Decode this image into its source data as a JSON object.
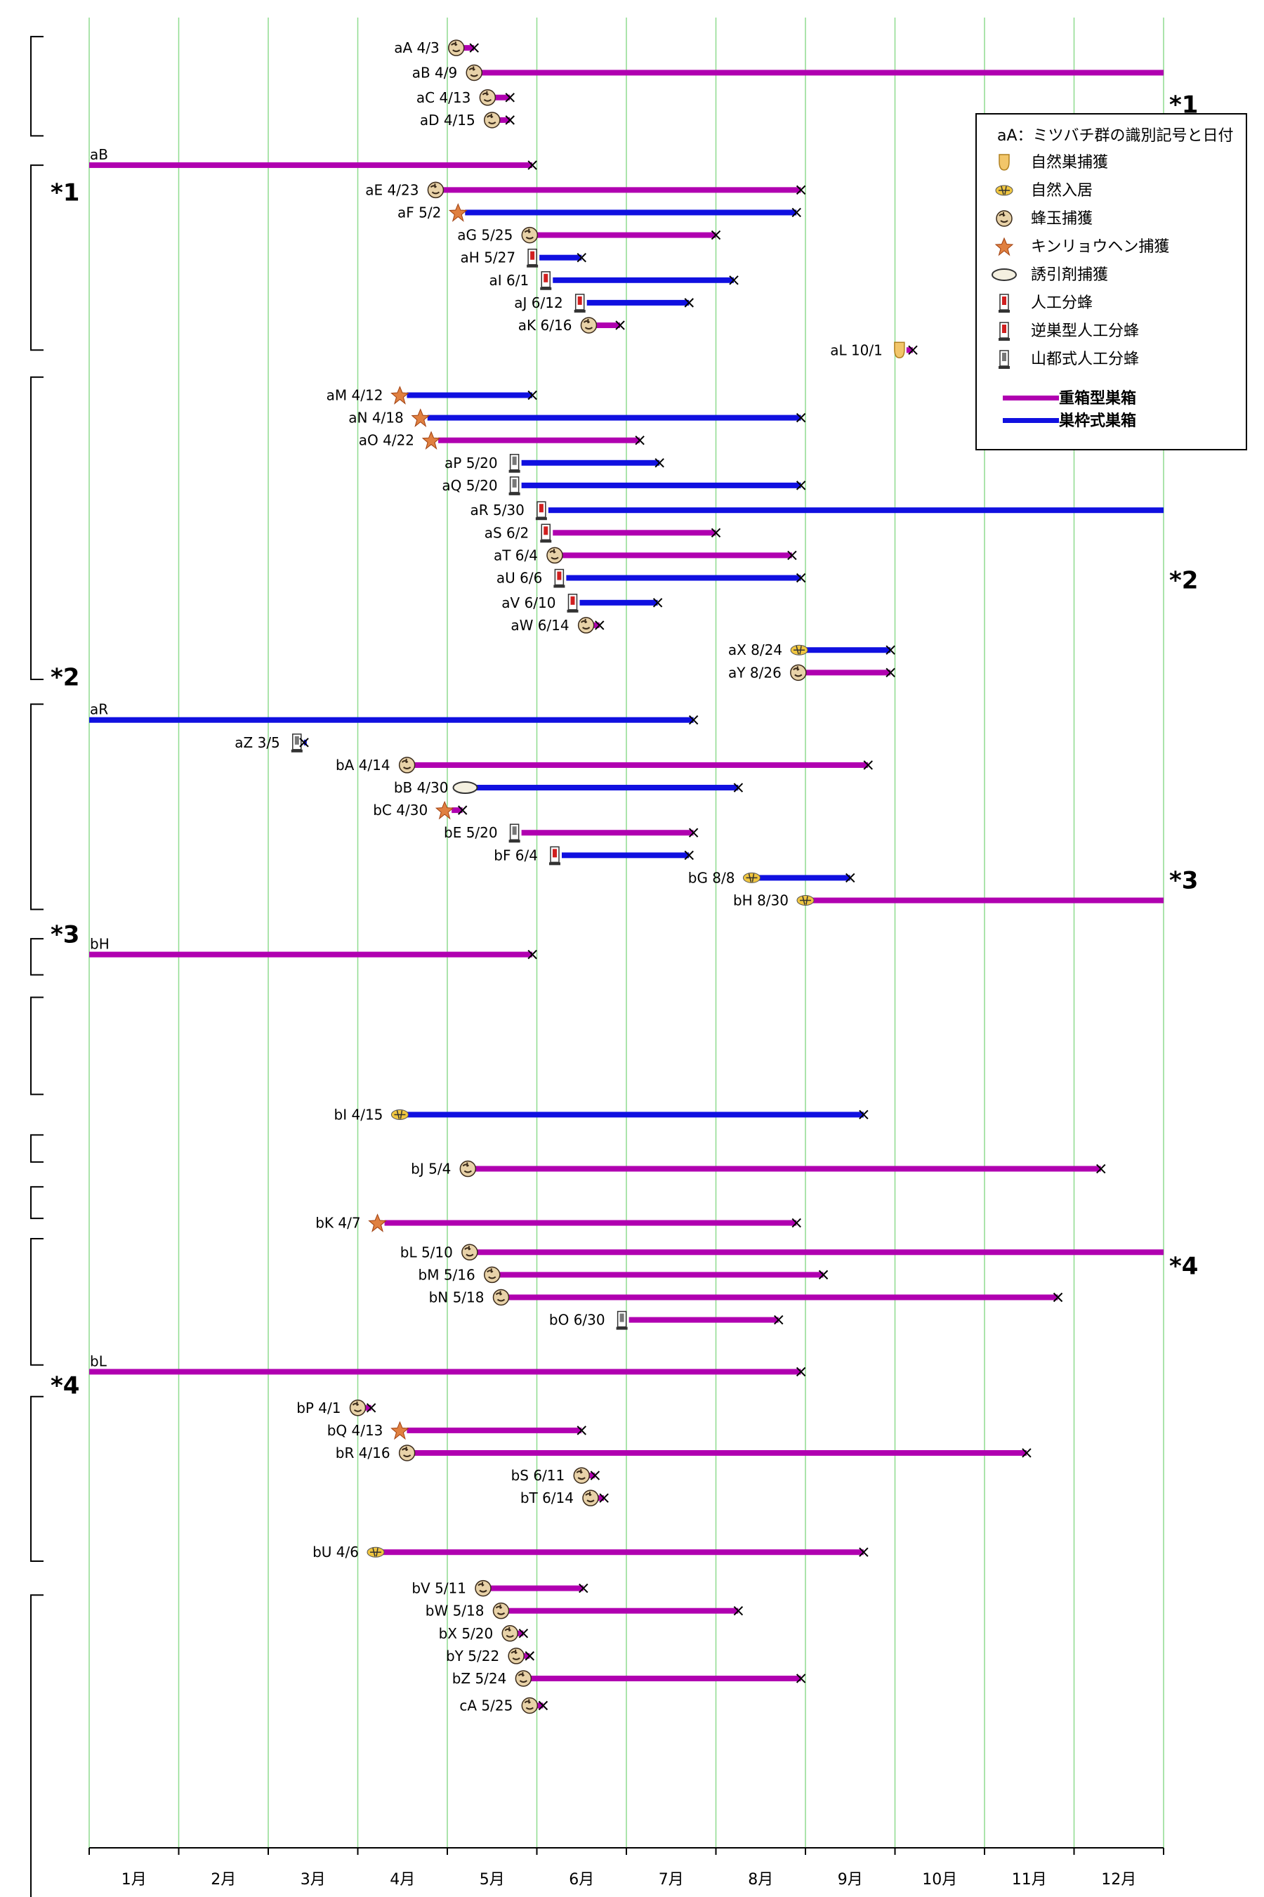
{
  "chart_data": {
    "type": "gantt",
    "colors": {
      "jubako": "#b000b0",
      "sukuwaku": "#1010e0",
      "grid": "#8fdc8f"
    },
    "months": [
      "1月",
      "2月",
      "3月",
      "4月",
      "5月",
      "6月",
      "7月",
      "8月",
      "9月",
      "10月",
      "11月",
      "12月"
    ],
    "legend": {
      "header": "aA：ミツバチ群の識別記号と日付",
      "items": [
        {
          "icon": "natural-nest-icon",
          "label": "自然巣捕獲"
        },
        {
          "icon": "swarm-settle-icon",
          "label": "自然入居"
        },
        {
          "icon": "swarm-ball-icon",
          "label": "蜂玉捕獲"
        },
        {
          "icon": "orchid-icon",
          "label": "キンリョウヘン捕獲"
        },
        {
          "icon": "lure-icon",
          "label": "誘引剤捕獲"
        },
        {
          "icon": "split-icon",
          "label": "人工分蜂"
        },
        {
          "icon": "split-reverse-icon",
          "label": "逆巣型人工分蜂"
        },
        {
          "icon": "split-yamato-icon",
          "label": "山都式人工分蜂"
        }
      ],
      "lines": [
        {
          "type": "jubako",
          "label": "重箱型巣箱"
        },
        {
          "type": "sukuwaku",
          "label": "巣枠式巣箱"
        }
      ]
    },
    "notes": [
      {
        "label": "*1",
        "y": 4.0
      },
      {
        "label": "*1",
        "y": 7.9
      },
      {
        "label": "*2",
        "y": 25.1
      },
      {
        "label": "*2",
        "y": 29.4
      },
      {
        "label": "*3",
        "y": 38.4
      },
      {
        "label": "*3",
        "y": 40.8
      },
      {
        "label": "*4",
        "y": 55.5
      },
      {
        "label": "*4",
        "y": 60.8
      }
    ],
    "brackets": [
      [
        1,
        5.4
      ],
      [
        6.7,
        14.9
      ],
      [
        16.1,
        29.5
      ],
      [
        30.6,
        39.7
      ],
      [
        41,
        42.6
      ],
      [
        43.6,
        47.9
      ],
      [
        49.7,
        50.9
      ],
      [
        52,
        53.4
      ],
      [
        54.3,
        59.9
      ],
      [
        61.3,
        68.6
      ],
      [
        70.1,
        83.9
      ]
    ],
    "rows": [
      {
        "label": "aA 4/3",
        "row": 1.5,
        "start": 4.1,
        "end": 4.3,
        "icon": "swarm-ball-icon",
        "type": "jubako",
        "x": true
      },
      {
        "label": "aB 4/9",
        "row": 2.6,
        "start": 4.3,
        "end": 12,
        "icon": "swarm-ball-icon",
        "type": "jubako",
        "x": false
      },
      {
        "label": "aC 4/13",
        "row": 3.7,
        "start": 4.45,
        "end": 4.7,
        "icon": "swarm-ball-icon",
        "type": "jubako",
        "x": true
      },
      {
        "label": "aD 4/15",
        "row": 4.7,
        "start": 4.5,
        "end": 4.7,
        "icon": "swarm-ball-icon",
        "type": "jubako",
        "x": true
      },
      {
        "label": "aB",
        "row": 6.7,
        "start": 0,
        "end": 4.95,
        "icon": "",
        "type": "jubako",
        "x": true
      },
      {
        "label": "aE 4/23",
        "row": 7.8,
        "start": 3.87,
        "end": 7.95,
        "icon": "swarm-ball-icon",
        "type": "jubako",
        "x": true
      },
      {
        "label": "aF 5/2",
        "row": 8.8,
        "start": 4.12,
        "end": 7.9,
        "icon": "orchid-icon",
        "type": "sukuwaku",
        "x": true
      },
      {
        "label": "aG 5/25",
        "row": 9.8,
        "start": 4.92,
        "end": 7.0,
        "icon": "swarm-ball-icon",
        "type": "jubako",
        "x": true
      },
      {
        "label": "aH 5/27",
        "row": 10.8,
        "start": 4.95,
        "end": 5.5,
        "icon": "split-icon",
        "type": "sukuwaku",
        "x": true
      },
      {
        "label": "aI 6/1",
        "row": 11.8,
        "start": 5.1,
        "end": 7.2,
        "icon": "split-icon",
        "type": "sukuwaku",
        "x": true
      },
      {
        "label": "aJ 6/12",
        "row": 12.8,
        "start": 5.48,
        "end": 6.7,
        "icon": "split-reverse-icon",
        "type": "sukuwaku",
        "x": true
      },
      {
        "label": "aK 6/16",
        "row": 13.8,
        "start": 5.58,
        "end": 5.93,
        "icon": "swarm-ball-icon",
        "type": "jubako",
        "x": true
      },
      {
        "label": "aL 10/1",
        "row": 14.9,
        "start": 9.05,
        "end": 9.2,
        "icon": "natural-nest-icon",
        "type": "jubako",
        "x": true
      },
      {
        "label": "aM 4/12",
        "row": 16.9,
        "start": 3.47,
        "end": 4.95,
        "icon": "orchid-icon",
        "type": "sukuwaku",
        "x": true
      },
      {
        "label": "aN 4/18",
        "row": 17.9,
        "start": 3.7,
        "end": 7.95,
        "icon": "orchid-icon",
        "type": "sukuwaku",
        "x": true
      },
      {
        "label": "aO 4/22",
        "row": 18.9,
        "start": 3.82,
        "end": 6.15,
        "icon": "orchid-icon",
        "type": "jubako",
        "x": true
      },
      {
        "label": "aP 5/20",
        "row": 19.9,
        "start": 4.75,
        "end": 6.37,
        "icon": "split-yamato-icon",
        "type": "sukuwaku",
        "x": true
      },
      {
        "label": "aQ 5/20",
        "row": 20.9,
        "start": 4.75,
        "end": 7.95,
        "icon": "split-yamato-icon",
        "type": "sukuwaku",
        "x": true
      },
      {
        "label": "aR 5/30",
        "row": 22.0,
        "start": 5.05,
        "end": 12,
        "icon": "split-icon",
        "type": "sukuwaku",
        "x": false
      },
      {
        "label": "aS 6/2",
        "row": 23.0,
        "start": 5.1,
        "end": 7.0,
        "icon": "split-icon",
        "type": "jubako",
        "x": true
      },
      {
        "label": "aT 6/4",
        "row": 24.0,
        "start": 5.2,
        "end": 7.85,
        "icon": "swarm-ball-icon",
        "type": "jubako",
        "x": true
      },
      {
        "label": "aU 6/6",
        "row": 25.0,
        "start": 5.25,
        "end": 7.95,
        "icon": "split-icon",
        "type": "sukuwaku",
        "x": true
      },
      {
        "label": "aV 6/10",
        "row": 26.1,
        "start": 5.4,
        "end": 6.35,
        "icon": "split-reverse-icon",
        "type": "sukuwaku",
        "x": true
      },
      {
        "label": "aW 6/14",
        "row": 27.1,
        "start": 5.55,
        "end": 5.7,
        "icon": "swarm-ball-icon",
        "type": "jubako",
        "x": true
      },
      {
        "label": "aX 8/24",
        "row": 28.2,
        "start": 7.93,
        "end": 8.95,
        "icon": "swarm-settle-icon",
        "type": "sukuwaku",
        "x": true
      },
      {
        "label": "aY 8/26",
        "row": 29.2,
        "start": 7.92,
        "end": 8.95,
        "icon": "swarm-ball-icon",
        "type": "jubako",
        "x": true
      },
      {
        "label": "aR",
        "row": 31.3,
        "start": 0,
        "end": 6.75,
        "icon": "",
        "type": "sukuwaku",
        "x": true
      },
      {
        "label": "aZ 3/5",
        "row": 32.3,
        "start": 2.32,
        "end": 2.4,
        "icon": "split-yamato-icon",
        "type": "sukuwaku",
        "x": true
      },
      {
        "label": "bA 4/14",
        "row": 33.3,
        "start": 3.55,
        "end": 8.7,
        "icon": "swarm-ball-icon",
        "type": "jubako",
        "x": true
      },
      {
        "label": "bB 4/30",
        "row": 34.3,
        "start": 4.2,
        "end": 7.25,
        "icon": "lure-icon",
        "type": "sukuwaku",
        "x": true
      },
      {
        "label": "bC 4/30",
        "row": 35.3,
        "start": 3.97,
        "end": 4.17,
        "icon": "orchid-icon",
        "type": "jubako",
        "x": true
      },
      {
        "label": "bE 5/20",
        "row": 36.3,
        "start": 4.75,
        "end": 6.75,
        "icon": "split-yamato-icon",
        "type": "jubako",
        "x": true
      },
      {
        "label": "bF 6/4",
        "row": 37.3,
        "start": 5.2,
        "end": 6.7,
        "icon": "split-icon",
        "type": "sukuwaku",
        "x": true
      },
      {
        "label": "bG 8/8",
        "row": 38.3,
        "start": 7.4,
        "end": 8.5,
        "icon": "swarm-settle-icon",
        "type": "sukuwaku",
        "x": true
      },
      {
        "label": "bH 8/30",
        "row": 39.3,
        "start": 8.0,
        "end": 12,
        "icon": "swarm-settle-icon",
        "type": "jubako",
        "x": false
      },
      {
        "label": "bH",
        "row": 41.7,
        "start": 0,
        "end": 4.95,
        "icon": "",
        "type": "jubako",
        "x": true
      },
      {
        "label": "bI 4/15",
        "row": 48.8,
        "start": 3.47,
        "end": 8.65,
        "icon": "swarm-settle-icon",
        "type": "sukuwaku",
        "x": true
      },
      {
        "label": "bJ 5/4",
        "row": 51.2,
        "start": 4.23,
        "end": 11.3,
        "icon": "swarm-ball-icon",
        "type": "jubako",
        "x": true
      },
      {
        "label": "bK 4/7",
        "row": 53.6,
        "start": 3.22,
        "end": 7.9,
        "icon": "orchid-icon",
        "type": "jubako",
        "x": true
      },
      {
        "label": "bL 5/10",
        "row": 54.9,
        "start": 4.25,
        "end": 12,
        "icon": "swarm-ball-icon",
        "type": "jubako",
        "x": false
      },
      {
        "label": "bM 5/16",
        "row": 55.9,
        "start": 4.5,
        "end": 8.2,
        "icon": "swarm-ball-icon",
        "type": "jubako",
        "x": true
      },
      {
        "label": "bN 5/18",
        "row": 56.9,
        "start": 4.6,
        "end": 10.82,
        "icon": "swarm-ball-icon",
        "type": "jubako",
        "x": true
      },
      {
        "label": "bO 6/30",
        "row": 57.9,
        "start": 5.95,
        "end": 7.7,
        "icon": "split-yamato-icon",
        "type": "jubako",
        "x": true
      },
      {
        "label": "bL",
        "row": 60.2,
        "start": 0,
        "end": 7.95,
        "icon": "",
        "type": "jubako",
        "x": true
      },
      {
        "label": "bP 4/1",
        "row": 61.8,
        "start": 3.0,
        "end": 3.15,
        "icon": "swarm-ball-icon",
        "type": "jubako",
        "x": true
      },
      {
        "label": "bQ 4/13",
        "row": 62.8,
        "start": 3.47,
        "end": 5.5,
        "icon": "orchid-icon",
        "type": "jubako",
        "x": true
      },
      {
        "label": "bR 4/16",
        "row": 63.8,
        "start": 3.55,
        "end": 10.47,
        "icon": "swarm-ball-icon",
        "type": "jubako",
        "x": true
      },
      {
        "label": "bS 6/11",
        "row": 64.8,
        "start": 5.5,
        "end": 5.65,
        "icon": "swarm-ball-icon",
        "type": "jubako",
        "x": true
      },
      {
        "label": "bT 6/14",
        "row": 65.8,
        "start": 5.6,
        "end": 5.75,
        "icon": "swarm-ball-icon",
        "type": "jubako",
        "x": true
      },
      {
        "label": "bU 4/6",
        "row": 68.2,
        "start": 3.2,
        "end": 8.65,
        "icon": "swarm-settle-icon",
        "type": "jubako",
        "x": true
      },
      {
        "label": "bV 5/11",
        "row": 69.8,
        "start": 4.4,
        "end": 5.52,
        "icon": "swarm-ball-icon",
        "type": "jubako",
        "x": true
      },
      {
        "label": "bW 5/18",
        "row": 70.8,
        "start": 4.6,
        "end": 7.25,
        "icon": "swarm-ball-icon",
        "type": "jubako",
        "x": true
      },
      {
        "label": "bX 5/20",
        "row": 71.8,
        "start": 4.7,
        "end": 4.85,
        "icon": "swarm-ball-icon",
        "type": "jubako",
        "x": true
      },
      {
        "label": "bY 5/22",
        "row": 72.8,
        "start": 4.77,
        "end": 4.92,
        "icon": "swarm-ball-icon",
        "type": "jubako",
        "x": true
      },
      {
        "label": "bZ 5/24",
        "row": 73.8,
        "start": 4.85,
        "end": 7.95,
        "icon": "swarm-ball-icon",
        "type": "jubako",
        "x": true
      },
      {
        "label": "cA 5/25",
        "row": 75.0,
        "start": 4.92,
        "end": 5.07,
        "icon": "swarm-ball-icon",
        "type": "jubako",
        "x": true
      }
    ]
  }
}
